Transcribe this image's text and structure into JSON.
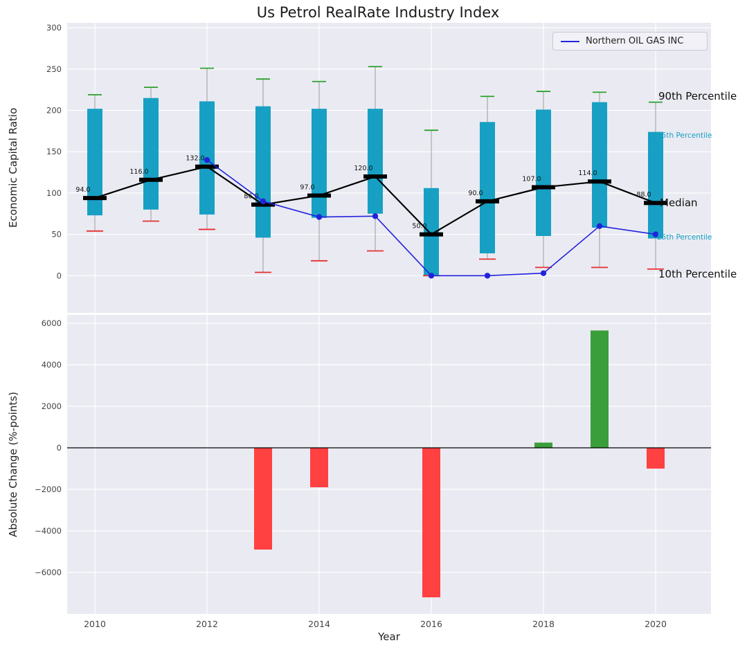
{
  "figure": {
    "title": "Us Petrol RealRate Industry Index",
    "background": "#ffffff",
    "panel_background": "#eaeaf2",
    "grid_color": "#ffffff",
    "accent_teal": "#17a0c4"
  },
  "chart_data": [
    {
      "type": "boxplot",
      "title": "Us Petrol RealRate Industry Index",
      "ylabel": "Economic Capital Ratio",
      "ylim": [
        -45,
        306
      ],
      "grid": true,
      "legend_position": "upper right",
      "legend": {
        "label": "Northern OIL GAS INC",
        "line_color": "#2222dd"
      },
      "yticks": [
        {
          "v": 0,
          "label": "0"
        },
        {
          "v": 50,
          "label": "50"
        },
        {
          "v": 100,
          "label": "100"
        },
        {
          "v": 150,
          "label": "150"
        },
        {
          "v": 200,
          "label": "200"
        },
        {
          "v": 250,
          "label": "250"
        },
        {
          "v": 300,
          "label": "300"
        }
      ],
      "xticks": [
        2010,
        2012,
        2014,
        2016,
        2018,
        2020
      ],
      "years": [
        2010,
        2011,
        2012,
        2013,
        2014,
        2015,
        2016,
        2017,
        2018,
        2019,
        2020
      ],
      "p10": [
        54,
        66,
        56,
        4,
        18,
        30,
        0,
        20,
        10,
        10,
        8
      ],
      "p25": [
        73,
        80,
        74,
        46,
        70,
        75,
        0,
        27,
        48,
        58,
        45
      ],
      "median": [
        94,
        116,
        132,
        86,
        97,
        120,
        50,
        90,
        107,
        114,
        88
      ],
      "p75": [
        202,
        215,
        211,
        205,
        202,
        202,
        106,
        186,
        201,
        210,
        174
      ],
      "p90": [
        219,
        228,
        251,
        238,
        235,
        253,
        176,
        217,
        223,
        222,
        210
      ],
      "median_labels": [
        "94.0",
        "116.0",
        "132.0",
        "86.0",
        "97.0",
        "120.0",
        "50.0",
        "90.0",
        "107.0",
        "114.0",
        "88.0"
      ],
      "company_series": {
        "name": "Northern OIL GAS INC",
        "x": [
          2012,
          2013,
          2014,
          2015,
          2016,
          2017,
          2018,
          2019,
          2020
        ],
        "y": [
          140,
          90,
          71,
          72,
          0,
          0,
          3,
          60,
          50
        ]
      },
      "annotations": [
        {
          "text": "90th Percentile",
          "style": "big"
        },
        {
          "text": "75th Percentile",
          "style": "small"
        },
        {
          "text": "Median",
          "style": "big"
        },
        {
          "text": "25th Percentile",
          "style": "small"
        },
        {
          "text": "10th Percentile",
          "style": "big"
        }
      ],
      "colors": {
        "box": "#17a0c4",
        "whisker": "#9a9a9a",
        "cap_top": "#2ca02c",
        "cap_bottom": "#e62e2e",
        "median_line": "#000000",
        "company_line": "#2222dd"
      }
    },
    {
      "type": "bar",
      "ylabel": "Absolute Change (%-points)",
      "xlabel": "Year",
      "ylim": [
        -8000,
        6400
      ],
      "grid": true,
      "yticks": [
        {
          "v": -6000,
          "label": "−6000"
        },
        {
          "v": -4000,
          "label": "−4000"
        },
        {
          "v": -2000,
          "label": "−2000"
        },
        {
          "v": 0,
          "label": "0"
        },
        {
          "v": 2000,
          "label": "2000"
        },
        {
          "v": 4000,
          "label": "4000"
        },
        {
          "v": 6000,
          "label": "6000"
        }
      ],
      "xticks": [
        2010,
        2012,
        2014,
        2016,
        2018,
        2020
      ],
      "categories": [
        2010,
        2011,
        2012,
        2013,
        2014,
        2015,
        2016,
        2017,
        2018,
        2019,
        2020
      ],
      "values": [
        0,
        0,
        0,
        -4900,
        -1900,
        0,
        -7200,
        0,
        250,
        5650,
        -1000
      ],
      "zero_line_color": "#000000",
      "positive_color": "#3a9e3a",
      "negative_color": "#ff4141"
    }
  ]
}
